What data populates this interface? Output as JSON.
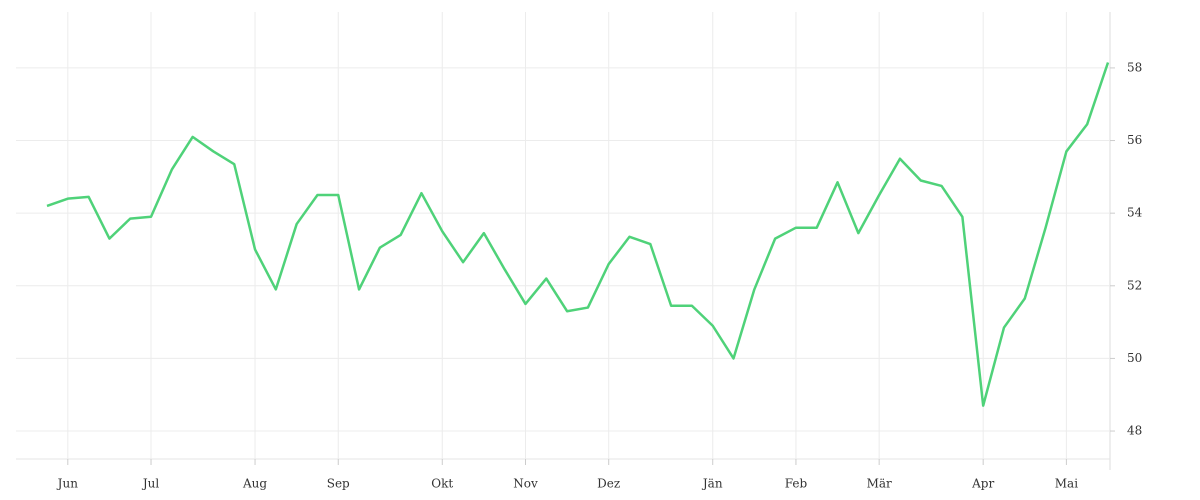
{
  "chart_data": {
    "type": "line",
    "categories": [
      null,
      "Jun",
      null,
      null,
      null,
      "Jul",
      null,
      null,
      null,
      null,
      "Aug",
      null,
      null,
      null,
      "Sep",
      null,
      null,
      null,
      null,
      "Okt",
      null,
      null,
      null,
      "Nov",
      null,
      null,
      null,
      "Dez",
      null,
      null,
      null,
      null,
      "Jän",
      null,
      null,
      null,
      "Feb",
      null,
      null,
      null,
      "Mär",
      null,
      null,
      null,
      null,
      "Apr",
      null,
      null,
      null,
      "Mai",
      null,
      null
    ],
    "values": [
      54.2,
      54.4,
      54.45,
      53.3,
      53.85,
      53.9,
      55.2,
      56.1,
      55.7,
      55.35,
      53.0,
      51.9,
      53.7,
      54.5,
      54.5,
      51.9,
      53.05,
      53.4,
      54.55,
      53.5,
      52.65,
      53.45,
      52.45,
      51.5,
      52.2,
      51.3,
      51.4,
      52.6,
      53.35,
      53.15,
      51.45,
      51.45,
      50.9,
      50.0,
      51.9,
      53.3,
      53.6,
      53.6,
      54.85,
      53.45,
      54.5,
      55.5,
      54.9,
      54.75,
      53.9,
      48.7,
      50.85,
      51.65,
      53.6,
      55.7,
      56.45,
      58.15
    ],
    "color": "#4fd279",
    "ylim": [
      47.23,
      59.54
    ],
    "yticks": [
      48,
      50,
      52,
      54,
      56,
      58
    ],
    "grid": true
  }
}
